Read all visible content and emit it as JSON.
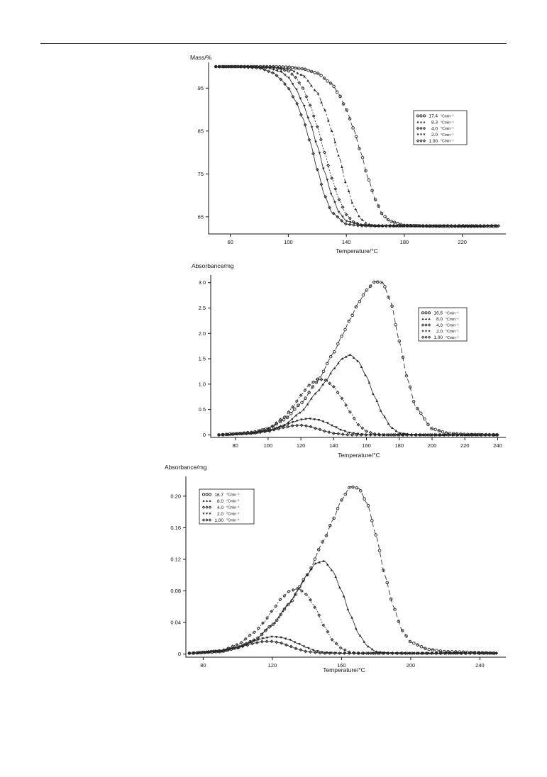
{
  "chart_data": [
    {
      "type": "line",
      "ylabel": "Mass/%",
      "xlabel": "Temperature/°C",
      "xlim": [
        45,
        250
      ],
      "ylim": [
        61,
        101
      ],
      "xticks": [
        60,
        100,
        140,
        180,
        220
      ],
      "yticks": [
        95,
        85,
        75,
        65
      ],
      "ytick_labels": [
        "95",
        "85",
        "75",
        "65"
      ],
      "legend_position": "right",
      "legend_unit": "°Cmin⁻¹",
      "series": [
        {
          "name": "17.4",
          "marker": "ring",
          "fit": "dash",
          "x": [
            50,
            70,
            90,
            100,
            110,
            120,
            130,
            135,
            140,
            145,
            150,
            155,
            160,
            165,
            170,
            180,
            200,
            220,
            245
          ],
          "y": [
            100,
            100,
            100,
            99.9,
            99.5,
            98.5,
            96,
            93.5,
            90,
            85.5,
            80,
            74,
            69,
            65.5,
            64,
            63,
            62.8,
            62.8,
            62.8
          ]
        },
        {
          "name": "8.3",
          "marker": "triangle",
          "fit": "dashdot",
          "x": [
            50,
            70,
            90,
            100,
            110,
            120,
            125,
            130,
            135,
            140,
            145,
            150,
            155,
            160,
            170,
            180,
            200,
            245
          ],
          "y": [
            100,
            100,
            99.9,
            99.5,
            98,
            94,
            90,
            85,
            79,
            72.5,
            67.5,
            64.5,
            63.3,
            62.9,
            62.8,
            62.8,
            62.8,
            62.8
          ]
        },
        {
          "name": "4.0",
          "marker": "diamond",
          "fit": "dot",
          "x": [
            50,
            70,
            90,
            100,
            105,
            110,
            115,
            120,
            125,
            130,
            135,
            140,
            145,
            150,
            160,
            180,
            245
          ],
          "y": [
            100,
            100,
            99.8,
            99,
            97.5,
            95,
            91,
            86,
            80,
            74,
            69,
            65.5,
            63.8,
            63.1,
            62.9,
            62.9,
            62.9
          ]
        },
        {
          "name": "2.0",
          "marker": "triangle-down",
          "fit": "solid",
          "x": [
            50,
            70,
            85,
            95,
            100,
            105,
            110,
            115,
            120,
            125,
            130,
            135,
            140,
            150,
            160,
            180,
            245
          ],
          "y": [
            100,
            100,
            99.8,
            98.8,
            97.5,
            95,
            91.5,
            87,
            81.5,
            75.5,
            70,
            66,
            64,
            63.1,
            62.9,
            62.9,
            62.9
          ]
        },
        {
          "name": "1.00",
          "marker": "diamond",
          "fit": "solid",
          "x": [
            50,
            65,
            80,
            90,
            95,
            100,
            105,
            110,
            115,
            120,
            125,
            130,
            140,
            150,
            170,
            245
          ],
          "y": [
            100,
            100,
            99.7,
            98.5,
            97,
            95,
            92,
            88,
            82.5,
            76,
            70,
            66,
            63.3,
            62.9,
            62.9,
            62.9
          ]
        }
      ]
    },
    {
      "type": "line",
      "ylabel": "Absorbance/mg",
      "xlabel": "Temperature/°C",
      "xlim": [
        65,
        245
      ],
      "ylim": [
        -0.05,
        3.15
      ],
      "xticks": [
        80,
        100,
        120,
        140,
        160,
        180,
        200,
        220,
        240
      ],
      "yticks": [
        0,
        0.5,
        1.0,
        1.5,
        2.0,
        2.5,
        3.0
      ],
      "ytick_labels": [
        "0",
        "0.5",
        "1.0",
        "1.5",
        "2.0",
        "2.5",
        "3.0"
      ],
      "legend_position": "right",
      "legend_unit": "°Cmin⁻¹",
      "series": [
        {
          "name": "16.6",
          "marker": "ring",
          "fit": "dash",
          "x": [
            70,
            80,
            90,
            100,
            110,
            120,
            130,
            140,
            145,
            150,
            155,
            160,
            165,
            170,
            175,
            180,
            185,
            190,
            200,
            210,
            220,
            240
          ],
          "y": [
            0,
            0.02,
            0.05,
            0.12,
            0.3,
            0.62,
            1.05,
            1.62,
            1.95,
            2.28,
            2.6,
            2.85,
            3.02,
            3.0,
            2.6,
            1.85,
            1.1,
            0.55,
            0.12,
            0.03,
            0.01,
            0
          ]
        },
        {
          "name": "8.0",
          "marker": "triangle",
          "fit": "solid",
          "x": [
            70,
            90,
            100,
            110,
            120,
            130,
            135,
            140,
            145,
            150,
            155,
            160,
            165,
            170,
            175,
            180,
            190,
            240
          ],
          "y": [
            0,
            0.03,
            0.08,
            0.2,
            0.45,
            0.85,
            1.05,
            1.3,
            1.5,
            1.58,
            1.45,
            1.15,
            0.75,
            0.4,
            0.15,
            0.04,
            0,
            0
          ]
        },
        {
          "name": "4.0",
          "marker": "diamond",
          "fit": "dot",
          "x": [
            70,
            90,
            100,
            110,
            115,
            120,
            125,
            130,
            135,
            140,
            145,
            150,
            155,
            160,
            165,
            170,
            180,
            240
          ],
          "y": [
            0,
            0.04,
            0.12,
            0.35,
            0.55,
            0.78,
            0.98,
            1.1,
            1.08,
            0.95,
            0.72,
            0.45,
            0.2,
            0.07,
            0.02,
            0,
            0,
            0
          ]
        },
        {
          "name": "2.0",
          "marker": "triangle-down",
          "fit": "solid",
          "x": [
            70,
            90,
            100,
            110,
            115,
            120,
            125,
            130,
            135,
            140,
            145,
            150,
            160,
            240
          ],
          "y": [
            0,
            0.03,
            0.08,
            0.18,
            0.25,
            0.3,
            0.32,
            0.3,
            0.25,
            0.17,
            0.09,
            0.04,
            0,
            0
          ]
        },
        {
          "name": "1.00",
          "marker": "diamond",
          "fit": "solid",
          "x": [
            70,
            90,
            100,
            105,
            110,
            115,
            120,
            125,
            130,
            135,
            140,
            150,
            240
          ],
          "y": [
            0,
            0.03,
            0.07,
            0.11,
            0.15,
            0.18,
            0.19,
            0.17,
            0.12,
            0.07,
            0.03,
            0,
            0
          ]
        }
      ]
    },
    {
      "type": "line",
      "ylabel": "Absorbance/mg",
      "xlabel": "Temperature/°C",
      "xlim": [
        70,
        255
      ],
      "ylim": [
        -0.004,
        0.225
      ],
      "xticks": [
        80,
        120,
        160,
        200,
        240
      ],
      "yticks": [
        0,
        0.04,
        0.08,
        0.12,
        0.16,
        0.2
      ],
      "ytick_labels": [
        "0",
        "0.04",
        "0.08",
        "0.12",
        "0.16",
        "0.20"
      ],
      "legend_position": "top-left",
      "legend_unit": "°Cmin⁻¹",
      "series": [
        {
          "name": "16.7",
          "marker": "ring",
          "fit": "dash",
          "x": [
            72,
            90,
            100,
            110,
            120,
            130,
            140,
            150,
            155,
            160,
            165,
            170,
            175,
            180,
            185,
            190,
            195,
            200,
            210,
            220,
            240,
            250
          ],
          "y": [
            0.001,
            0.003,
            0.008,
            0.018,
            0.037,
            0.064,
            0.1,
            0.145,
            0.17,
            0.195,
            0.212,
            0.21,
            0.19,
            0.15,
            0.1,
            0.06,
            0.03,
            0.015,
            0.006,
            0.003,
            0.002,
            0.001
          ]
        },
        {
          "name": "8.0",
          "marker": "triangle",
          "fit": "solid",
          "x": [
            72,
            90,
            100,
            110,
            120,
            130,
            135,
            140,
            145,
            150,
            155,
            160,
            165,
            170,
            175,
            180,
            190,
            250
          ],
          "y": [
            0.001,
            0.003,
            0.008,
            0.018,
            0.037,
            0.065,
            0.082,
            0.1,
            0.115,
            0.118,
            0.105,
            0.08,
            0.05,
            0.025,
            0.01,
            0.003,
            0.001,
            0.001
          ]
        },
        {
          "name": "4.0",
          "marker": "diamond",
          "fit": "dot",
          "x": [
            72,
            90,
            100,
            110,
            115,
            120,
            125,
            130,
            135,
            140,
            145,
            150,
            155,
            160,
            165,
            170,
            180,
            250
          ],
          "y": [
            0.001,
            0.004,
            0.012,
            0.028,
            0.04,
            0.055,
            0.07,
            0.08,
            0.083,
            0.075,
            0.058,
            0.035,
            0.017,
            0.007,
            0.002,
            0.001,
            0.001,
            0.001
          ]
        },
        {
          "name": "2.0",
          "marker": "triangle-down",
          "fit": "solid",
          "x": [
            72,
            90,
            100,
            105,
            110,
            115,
            120,
            125,
            130,
            135,
            140,
            145,
            150,
            160,
            250
          ],
          "y": [
            0.001,
            0.004,
            0.009,
            0.013,
            0.017,
            0.02,
            0.022,
            0.021,
            0.018,
            0.013,
            0.008,
            0.004,
            0.002,
            0.001,
            0.001
          ]
        },
        {
          "name": "1.00",
          "marker": "diamond",
          "fit": "solid",
          "x": [
            72,
            90,
            100,
            105,
            110,
            115,
            120,
            125,
            130,
            135,
            140,
            150,
            250
          ],
          "y": [
            0.001,
            0.004,
            0.008,
            0.011,
            0.014,
            0.016,
            0.016,
            0.014,
            0.01,
            0.006,
            0.003,
            0.001,
            0.001
          ]
        }
      ]
    }
  ]
}
